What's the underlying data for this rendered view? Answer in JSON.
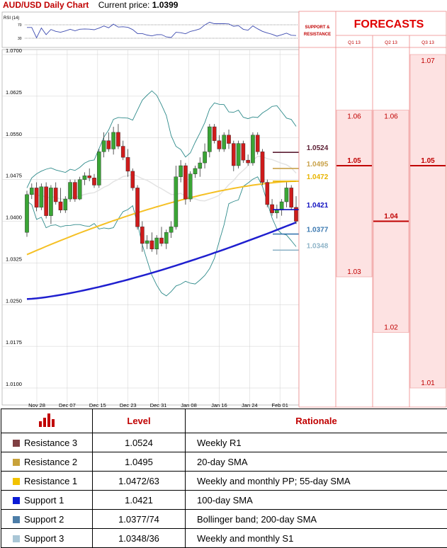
{
  "header": {
    "title": "AUD/USD Daily Chart",
    "current_price_label": "Current price:",
    "current_price": "1.0399"
  },
  "forecast_header": {
    "support_resistance": [
      "SUPPORT &",
      "RESISTANCE"
    ],
    "title": "FORECASTS",
    "quarters": [
      "Q1 13",
      "Q2 13",
      "Q3 13"
    ]
  },
  "chart_data": {
    "type": "candlestick",
    "instrument": "AUD/USD",
    "timeframe": "Daily",
    "current_price": 1.0399,
    "ylim": [
      1.01,
      1.07
    ],
    "y_ticks": [
      1.07,
      1.0625,
      1.055,
      1.0475,
      1.04,
      1.0325,
      1.025,
      1.0175,
      1.01
    ],
    "y_tick_labels": [
      "1.0700",
      "1.0625",
      "1.0550",
      "1.0475",
      "1.0400",
      "1.0325",
      "1.0250",
      "1.0175",
      "1.0100"
    ],
    "x_tick_labels": [
      "Nov 28",
      "Dec 07",
      "Dec 15",
      "Dec 23",
      "Dec 31",
      "Jan 08",
      "Jan 16",
      "Jan 24",
      "Feb 01"
    ],
    "rsi_label": "RSI (14)",
    "rsi_levels": [
      "70",
      "30"
    ],
    "levels": [
      {
        "label": "1.0524",
        "value": 1.0524,
        "color": "#5c1f34"
      },
      {
        "label": "1.0495",
        "value": 1.0495,
        "color": "#c9a24a"
      },
      {
        "label": "1.0472",
        "value": 1.0472,
        "color": "#e8b400"
      },
      {
        "label": "1.0421",
        "value": 1.0421,
        "color": "#1010c0"
      },
      {
        "label": "1.0377",
        "value": 1.0377,
        "color": "#3a78b0"
      },
      {
        "label": "1.0348",
        "value": 1.0348,
        "color": "#8fb4c8"
      }
    ],
    "forecasts": [
      {
        "quarter": "Q1 13",
        "high": 1.06,
        "median": 1.05,
        "low": 1.03,
        "labels": [
          "1.06",
          "1.05",
          "1.03"
        ]
      },
      {
        "quarter": "Q2 13",
        "high": 1.06,
        "median": 1.04,
        "low": 1.02,
        "labels": [
          "1.06",
          "1.04",
          "1.02"
        ]
      },
      {
        "quarter": "Q3 13",
        "high": 1.07,
        "median": 1.05,
        "low": 1.01,
        "labels": [
          "1.07",
          "1.05",
          "1.01"
        ]
      }
    ],
    "candles": [
      [
        1.038,
        1.0455,
        1.0372,
        1.0448
      ],
      [
        1.0448,
        1.0468,
        1.044,
        1.046
      ],
      [
        1.046,
        1.047,
        1.0418,
        1.0425
      ],
      [
        1.0425,
        1.0468,
        1.042,
        1.0462
      ],
      [
        1.0462,
        1.047,
        1.0405,
        1.041
      ],
      [
        1.041,
        1.0465,
        1.0395,
        1.046
      ],
      [
        1.046,
        1.047,
        1.043,
        1.0435
      ],
      [
        1.0435,
        1.046,
        1.0415,
        1.042
      ],
      [
        1.042,
        1.0445,
        1.0415,
        1.044
      ],
      [
        1.044,
        1.0475,
        1.0435,
        1.047
      ],
      [
        1.047,
        1.0475,
        1.0435,
        1.044
      ],
      [
        1.044,
        1.048,
        1.0438,
        1.0475
      ],
      [
        1.0475,
        1.0488,
        1.0465,
        1.0482
      ],
      [
        1.0482,
        1.0495,
        1.0472,
        1.0478
      ],
      [
        1.0478,
        1.0485,
        1.046,
        1.0465
      ],
      [
        1.0465,
        1.053,
        1.046,
        1.0525
      ],
      [
        1.0525,
        1.056,
        1.0515,
        1.0545
      ],
      [
        1.0545,
        1.056,
        1.0525,
        1.053
      ],
      [
        1.053,
        1.057,
        1.052,
        1.056
      ],
      [
        1.056,
        1.0575,
        1.053,
        1.0535
      ],
      [
        1.0535,
        1.0545,
        1.051,
        1.0515
      ],
      [
        1.0515,
        1.053,
        1.048,
        1.049
      ],
      [
        1.049,
        1.0495,
        1.0455,
        1.046
      ],
      [
        1.046,
        1.0465,
        1.0385,
        1.039
      ],
      [
        1.039,
        1.04,
        1.0345,
        1.036
      ],
      [
        1.036,
        1.0375,
        1.035,
        1.0365
      ],
      [
        1.0365,
        1.038,
        1.0345,
        1.035
      ],
      [
        1.035,
        1.0375,
        1.034,
        1.037
      ],
      [
        1.037,
        1.039,
        1.0355,
        1.036
      ],
      [
        1.036,
        1.0385,
        1.035,
        1.038
      ],
      [
        1.038,
        1.04,
        1.037,
        1.039
      ],
      [
        1.039,
        1.05,
        1.0385,
        1.048
      ],
      [
        1.048,
        1.051,
        1.047,
        1.05
      ],
      [
        1.05,
        1.0505,
        1.043,
        1.044
      ],
      [
        1.044,
        1.049,
        1.0435,
        1.0485
      ],
      [
        1.0485,
        1.05,
        1.0478,
        1.0495
      ],
      [
        1.0495,
        1.0515,
        1.048,
        1.0505
      ],
      [
        1.0505,
        1.054,
        1.0495,
        1.0525
      ],
      [
        1.0525,
        1.0575,
        1.0515,
        1.057
      ],
      [
        1.057,
        1.0575,
        1.054,
        1.0545
      ],
      [
        1.0545,
        1.0555,
        1.0525,
        1.053
      ],
      [
        1.053,
        1.056,
        1.0525,
        1.0555
      ],
      [
        1.0555,
        1.0565,
        1.053,
        1.054
      ],
      [
        1.054,
        1.0545,
        1.049,
        1.05
      ],
      [
        1.05,
        1.0545,
        1.0495,
        1.054
      ],
      [
        1.054,
        1.0545,
        1.0505,
        1.051
      ],
      [
        1.051,
        1.052,
        1.05,
        1.0505
      ],
      [
        1.0505,
        1.056,
        1.05,
        1.0555
      ],
      [
        1.0555,
        1.056,
        1.052,
        1.0525
      ],
      [
        1.0525,
        1.053,
        1.0465,
        1.047
      ],
      [
        1.047,
        1.0475,
        1.0425,
        1.043
      ],
      [
        1.043,
        1.044,
        1.041,
        1.0415
      ],
      [
        1.0415,
        1.043,
        1.0405,
        1.042
      ],
      [
        1.042,
        1.044,
        1.041,
        1.0435
      ],
      [
        1.0435,
        1.047,
        1.0425,
        1.046
      ],
      [
        1.046,
        1.0465,
        1.042,
        1.0425
      ],
      [
        1.0425,
        1.0445,
        1.0395,
        1.04
      ]
    ]
  },
  "table": {
    "headers": {
      "level": "Level",
      "rationale": "Rationale"
    },
    "rows": [
      {
        "name": "Resistance 3",
        "level": "1.0524",
        "rationale": "Weekly R1",
        "color": "#7f3f42"
      },
      {
        "name": "Resistance 2",
        "level": "1.0495",
        "rationale": "20-day SMA",
        "color": "#c8a23a"
      },
      {
        "name": "Resistance 1",
        "level": "1.0472/63",
        "rationale": "Weekly and monthly PP; 55-day SMA",
        "color": "#f2c200"
      },
      {
        "name": "Support 1",
        "level": "1.0421",
        "rationale": "100-day SMA",
        "color": "#0b1bd6"
      },
      {
        "name": "Support 2",
        "level": "1.0377/74",
        "rationale": "Bollinger band; 200-day SMA",
        "color": "#4d7ea8"
      },
      {
        "name": "Support 3",
        "level": "1.0348/36",
        "rationale": "Weekly and monthly S1",
        "color": "#a9c6d6"
      }
    ]
  }
}
